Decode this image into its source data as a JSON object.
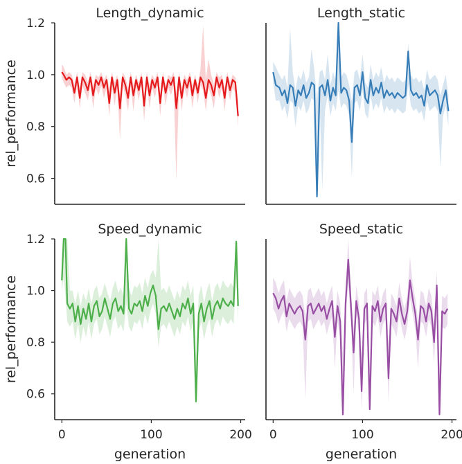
{
  "figure": {
    "xlabel": "generation",
    "ylabel": "rel_performance",
    "xlim": [
      -8,
      205
    ],
    "ylim": [
      0.5,
      1.2
    ],
    "xticks": [
      "0",
      "100",
      "200"
    ],
    "yticks": [
      "0.6",
      "0.8",
      "1.0",
      "1.2"
    ]
  },
  "chart_data": [
    {
      "type": "line",
      "title": "Length_dynamic",
      "color": "#e41a1c",
      "xlim": [
        -8,
        205
      ],
      "ylim": [
        0.5,
        1.2
      ],
      "x": [
        0,
        2,
        5,
        8,
        11,
        14,
        17,
        20,
        23,
        26,
        29,
        32,
        35,
        38,
        41,
        44,
        47,
        50,
        53,
        56,
        59,
        62,
        65,
        68,
        71,
        74,
        77,
        80,
        83,
        86,
        89,
        92,
        95,
        98,
        101,
        104,
        107,
        110,
        113,
        116,
        119,
        122,
        125,
        128,
        131,
        134,
        137,
        140,
        143,
        146,
        149,
        152,
        155,
        158,
        161,
        164,
        167,
        170,
        173,
        176,
        179,
        182,
        185,
        188,
        191,
        194,
        197
      ],
      "values": [
        1.01,
        1.0,
        0.98,
        0.99,
        0.98,
        0.93,
        0.99,
        0.91,
        0.99,
        0.97,
        0.94,
        0.99,
        0.92,
        0.98,
        0.96,
        0.99,
        0.95,
        0.98,
        0.89,
        0.99,
        0.93,
        0.98,
        0.87,
        0.99,
        0.96,
        0.91,
        0.99,
        0.92,
        0.98,
        0.94,
        0.99,
        0.88,
        0.99,
        0.92,
        0.98,
        0.95,
        0.99,
        0.89,
        0.99,
        0.93,
        0.98,
        0.96,
        0.99,
        0.87,
        0.99,
        0.91,
        0.98,
        0.95,
        0.99,
        0.92,
        0.98,
        0.93,
        0.99,
        0.97,
        0.91,
        0.98,
        0.96,
        0.92,
        0.99,
        0.95,
        0.98,
        0.91,
        0.99,
        0.94,
        0.98,
        0.97,
        0.84
      ],
      "band_upper": [
        1.04,
        1.03,
        1.0,
        1.01,
        1.0,
        0.96,
        1.01,
        0.95,
        1.01,
        1.0,
        0.97,
        1.01,
        0.96,
        1.0,
        0.99,
        1.01,
        0.98,
        1.0,
        0.95,
        1.01,
        0.97,
        1.0,
        0.92,
        1.01,
        0.99,
        0.95,
        1.01,
        0.96,
        1.0,
        0.97,
        1.01,
        0.92,
        1.01,
        0.96,
        1.0,
        0.98,
        1.01,
        0.93,
        1.01,
        0.96,
        1.0,
        0.99,
        1.01,
        0.93,
        1.01,
        0.95,
        1.0,
        0.98,
        1.01,
        0.96,
        1.0,
        0.96,
        1.02,
        1.19,
        0.98,
        1.06,
        1.0,
        0.96,
        1.01,
        0.99,
        1.0,
        0.95,
        1.01,
        0.97,
        1.0,
        0.99,
        0.9
      ],
      "band_lower": [
        0.99,
        0.97,
        0.95,
        0.96,
        0.95,
        0.89,
        0.96,
        0.87,
        0.96,
        0.93,
        0.9,
        0.96,
        0.87,
        0.95,
        0.92,
        0.96,
        0.91,
        0.95,
        0.84,
        0.96,
        0.88,
        0.95,
        0.75,
        0.96,
        0.92,
        0.86,
        0.96,
        0.86,
        0.95,
        0.9,
        0.96,
        0.82,
        0.96,
        0.87,
        0.95,
        0.91,
        0.96,
        0.84,
        0.96,
        0.88,
        0.95,
        0.92,
        0.96,
        0.59,
        0.96,
        0.86,
        0.95,
        0.91,
        0.96,
        0.87,
        0.95,
        0.89,
        0.96,
        0.94,
        0.86,
        0.95,
        0.92,
        0.87,
        0.96,
        0.91,
        0.95,
        0.86,
        0.96,
        0.9,
        0.95,
        0.93,
        0.8
      ]
    },
    {
      "type": "line",
      "title": "Length_static",
      "color": "#377eb8",
      "xlim": [
        -8,
        205
      ],
      "ylim": [
        0.5,
        1.2
      ],
      "x": [
        0,
        3,
        7,
        10,
        13,
        16,
        19,
        22,
        25,
        28,
        31,
        34,
        37,
        40,
        43,
        46,
        49,
        52,
        55,
        58,
        61,
        64,
        67,
        70,
        73,
        76,
        79,
        82,
        85,
        88,
        91,
        94,
        97,
        100,
        103,
        106,
        109,
        112,
        115,
        118,
        121,
        124,
        127,
        130,
        133,
        136,
        139,
        142,
        145,
        148,
        151,
        154,
        157,
        160,
        163,
        166,
        169,
        172,
        175,
        178,
        181,
        184,
        187,
        190,
        193,
        196
      ],
      "values": [
        1.01,
        0.96,
        0.95,
        0.92,
        0.94,
        0.89,
        0.96,
        0.95,
        0.88,
        0.94,
        0.92,
        0.96,
        0.91,
        0.93,
        0.97,
        0.96,
        0.53,
        0.95,
        0.96,
        0.92,
        0.98,
        0.9,
        0.95,
        0.92,
        1.2,
        0.93,
        0.95,
        0.94,
        0.9,
        0.74,
        0.95,
        0.96,
        0.92,
        1.01,
        0.91,
        0.89,
        0.98,
        0.92,
        0.95,
        0.93,
        0.97,
        0.91,
        0.94,
        0.92,
        0.93,
        0.91,
        0.93,
        0.92,
        0.91,
        0.92,
        1.09,
        0.94,
        0.92,
        0.93,
        0.91,
        0.92,
        0.88,
        0.96,
        0.92,
        0.93,
        0.94,
        0.92,
        0.85,
        0.9,
        0.94,
        0.86
      ],
      "band_upper": [
        1.05,
        1.03,
        1.0,
        0.98,
        1.0,
        0.95,
        1.18,
        1.01,
        0.94,
        1.0,
        0.98,
        1.02,
        0.97,
        0.99,
        1.1,
        1.02,
        0.9,
        1.01,
        1.02,
        0.98,
        1.08,
        0.96,
        1.01,
        0.98,
        1.2,
        0.99,
        1.01,
        1.0,
        0.96,
        0.9,
        1.01,
        1.02,
        0.98,
        1.08,
        0.97,
        0.95,
        1.04,
        0.98,
        1.01,
        0.99,
        1.03,
        0.97,
        1.0,
        0.98,
        0.99,
        0.97,
        0.99,
        0.98,
        0.97,
        0.98,
        1.12,
        1.0,
        0.98,
        0.99,
        0.97,
        0.98,
        0.94,
        1.02,
        0.98,
        0.99,
        1.0,
        0.98,
        0.92,
        0.96,
        1.0,
        0.92
      ],
      "band_lower": [
        0.97,
        0.9,
        0.9,
        0.86,
        0.88,
        0.83,
        0.9,
        0.89,
        0.8,
        0.88,
        0.86,
        0.9,
        0.85,
        0.87,
        0.91,
        0.9,
        0.52,
        0.89,
        0.55,
        0.86,
        0.92,
        0.84,
        0.89,
        0.86,
        0.94,
        0.87,
        0.89,
        0.88,
        0.84,
        0.6,
        0.89,
        0.9,
        0.86,
        0.94,
        0.85,
        0.83,
        0.92,
        0.86,
        0.89,
        0.87,
        0.91,
        0.85,
        0.88,
        0.86,
        0.87,
        0.85,
        0.87,
        0.86,
        0.85,
        0.86,
        0.96,
        0.88,
        0.86,
        0.87,
        0.85,
        0.86,
        0.82,
        0.9,
        0.86,
        0.87,
        0.88,
        0.86,
        0.64,
        0.84,
        0.88,
        0.8
      ]
    },
    {
      "type": "line",
      "title": "Speed_dynamic",
      "color": "#4daf4a",
      "xlim": [
        -8,
        205
      ],
      "ylim": [
        0.5,
        1.2
      ],
      "x": [
        0,
        2,
        4,
        6,
        9,
        12,
        15,
        18,
        21,
        24,
        27,
        30,
        33,
        36,
        39,
        42,
        45,
        48,
        51,
        54,
        57,
        60,
        63,
        66,
        69,
        72,
        75,
        78,
        81,
        84,
        87,
        90,
        93,
        96,
        99,
        102,
        105,
        108,
        111,
        114,
        117,
        120,
        123,
        126,
        129,
        132,
        135,
        138,
        141,
        144,
        147,
        150,
        153,
        156,
        159,
        162,
        165,
        168,
        171,
        174,
        177,
        180,
        183,
        186,
        189,
        192,
        195,
        197
      ],
      "values": [
        1.04,
        1.2,
        1.2,
        0.95,
        0.93,
        0.95,
        0.88,
        0.94,
        0.87,
        0.93,
        0.89,
        0.95,
        0.88,
        0.94,
        0.96,
        0.9,
        0.92,
        0.97,
        0.93,
        0.89,
        0.95,
        0.97,
        0.92,
        0.94,
        0.91,
        1.2,
        0.93,
        0.91,
        0.95,
        0.94,
        0.96,
        0.92,
        0.98,
        0.94,
        0.99,
        1.02,
        0.98,
        0.85,
        0.93,
        0.94,
        0.92,
        0.95,
        0.92,
        0.89,
        0.93,
        0.9,
        0.95,
        0.93,
        0.97,
        0.91,
        0.95,
        0.57,
        0.91,
        0.95,
        0.88,
        0.93,
        0.96,
        0.89,
        0.94,
        0.96,
        0.93,
        0.97,
        0.95,
        0.94,
        0.96,
        0.94,
        1.19,
        0.94
      ],
      "band_upper": [
        1.08,
        1.2,
        1.2,
        1.2,
        1.0,
        1.0,
        0.95,
        1.0,
        0.94,
        0.99,
        0.96,
        1.01,
        0.95,
        1.0,
        1.02,
        0.97,
        0.99,
        1.03,
        0.99,
        0.96,
        1.01,
        1.04,
        0.99,
        1.01,
        0.98,
        1.2,
        1.01,
        0.98,
        1.02,
        1.01,
        1.03,
        0.99,
        1.05,
        1.01,
        1.06,
        1.08,
        1.05,
        1.2,
        1.0,
        1.01,
        0.99,
        1.02,
        0.99,
        0.96,
        1.0,
        0.97,
        1.02,
        1.0,
        1.04,
        0.98,
        1.02,
        0.75,
        0.98,
        1.02,
        0.95,
        1.0,
        1.03,
        0.96,
        1.01,
        1.03,
        1.0,
        1.04,
        1.02,
        1.01,
        1.03,
        1.01,
        1.2,
        1.0
      ],
      "band_lower": [
        1.0,
        1.05,
        0.98,
        0.88,
        0.86,
        0.88,
        0.81,
        0.87,
        0.8,
        0.86,
        0.82,
        0.88,
        0.81,
        0.87,
        0.89,
        0.83,
        0.85,
        0.9,
        0.86,
        0.82,
        0.88,
        0.9,
        0.85,
        0.87,
        0.84,
        0.95,
        0.86,
        0.84,
        0.88,
        0.87,
        0.89,
        0.85,
        0.91,
        0.87,
        0.92,
        0.95,
        0.91,
        0.78,
        0.86,
        0.87,
        0.85,
        0.88,
        0.85,
        0.82,
        0.86,
        0.83,
        0.88,
        0.86,
        0.9,
        0.84,
        0.88,
        0.56,
        0.84,
        0.88,
        0.81,
        0.86,
        0.89,
        0.82,
        0.87,
        0.89,
        0.86,
        0.9,
        0.88,
        0.87,
        0.89,
        0.87,
        1.05,
        0.88
      ]
    },
    {
      "type": "line",
      "title": "Speed_static",
      "color": "#984ea3",
      "xlim": [
        -8,
        205
      ],
      "ylim": [
        0.5,
        1.2
      ],
      "x": [
        0,
        3,
        6,
        9,
        12,
        15,
        18,
        21,
        24,
        27,
        30,
        33,
        36,
        39,
        42,
        45,
        48,
        51,
        54,
        57,
        60,
        63,
        66,
        69,
        72,
        75,
        78,
        81,
        84,
        87,
        90,
        93,
        96,
        99,
        102,
        105,
        108,
        111,
        114,
        117,
        120,
        123,
        126,
        129,
        132,
        135,
        138,
        141,
        144,
        147,
        150,
        153,
        156,
        159,
        162,
        165,
        168,
        171,
        174,
        177,
        180,
        183,
        186,
        189,
        192,
        195
      ],
      "values": [
        0.99,
        0.97,
        0.93,
        0.96,
        0.98,
        0.9,
        0.95,
        0.93,
        0.91,
        0.93,
        0.94,
        0.92,
        0.81,
        0.94,
        0.95,
        0.91,
        0.93,
        0.95,
        0.92,
        0.94,
        0.89,
        0.93,
        0.96,
        0.82,
        0.94,
        0.88,
        0.52,
        0.95,
        1.12,
        0.94,
        0.76,
        0.96,
        0.89,
        0.61,
        0.93,
        0.95,
        0.54,
        0.94,
        0.92,
        0.96,
        0.88,
        0.93,
        0.95,
        0.66,
        0.93,
        0.91,
        0.88,
        0.97,
        0.91,
        0.87,
        0.92,
        1.04,
        0.97,
        0.91,
        0.81,
        0.94,
        0.93,
        0.88,
        0.95,
        0.92,
        0.8,
        1.02,
        0.52,
        0.92,
        0.91,
        0.93
      ],
      "band_upper": [
        1.05,
        1.03,
        0.99,
        1.02,
        1.04,
        0.96,
        1.01,
        0.99,
        0.97,
        0.99,
        1.0,
        0.98,
        0.9,
        1.0,
        1.01,
        0.97,
        0.99,
        1.01,
        0.98,
        1.0,
        0.95,
        0.99,
        1.02,
        0.89,
        1.0,
        0.95,
        0.75,
        1.01,
        1.2,
        1.0,
        0.85,
        1.02,
        0.95,
        0.75,
        0.99,
        1.01,
        0.7,
        1.0,
        0.98,
        1.02,
        0.94,
        0.99,
        1.01,
        0.8,
        0.99,
        0.97,
        0.94,
        1.03,
        0.97,
        0.93,
        0.98,
        1.13,
        1.03,
        0.97,
        0.88,
        1.0,
        0.99,
        0.94,
        1.01,
        0.98,
        0.87,
        1.08,
        0.7,
        0.98,
        0.97,
        0.99
      ],
      "band_lower": [
        0.93,
        0.91,
        0.87,
        0.9,
        0.92,
        0.84,
        0.89,
        0.87,
        0.85,
        0.87,
        0.88,
        0.86,
        0.58,
        0.88,
        0.89,
        0.85,
        0.87,
        0.89,
        0.86,
        0.88,
        0.83,
        0.87,
        0.9,
        0.7,
        0.88,
        0.82,
        0.52,
        0.89,
        1.02,
        0.88,
        0.6,
        0.9,
        0.83,
        0.54,
        0.87,
        0.89,
        0.52,
        0.88,
        0.86,
        0.9,
        0.82,
        0.87,
        0.89,
        0.57,
        0.87,
        0.85,
        0.82,
        0.91,
        0.85,
        0.81,
        0.86,
        0.97,
        0.91,
        0.85,
        0.7,
        0.88,
        0.87,
        0.82,
        0.89,
        0.86,
        0.72,
        0.95,
        0.52,
        0.86,
        0.85,
        0.87
      ]
    }
  ]
}
